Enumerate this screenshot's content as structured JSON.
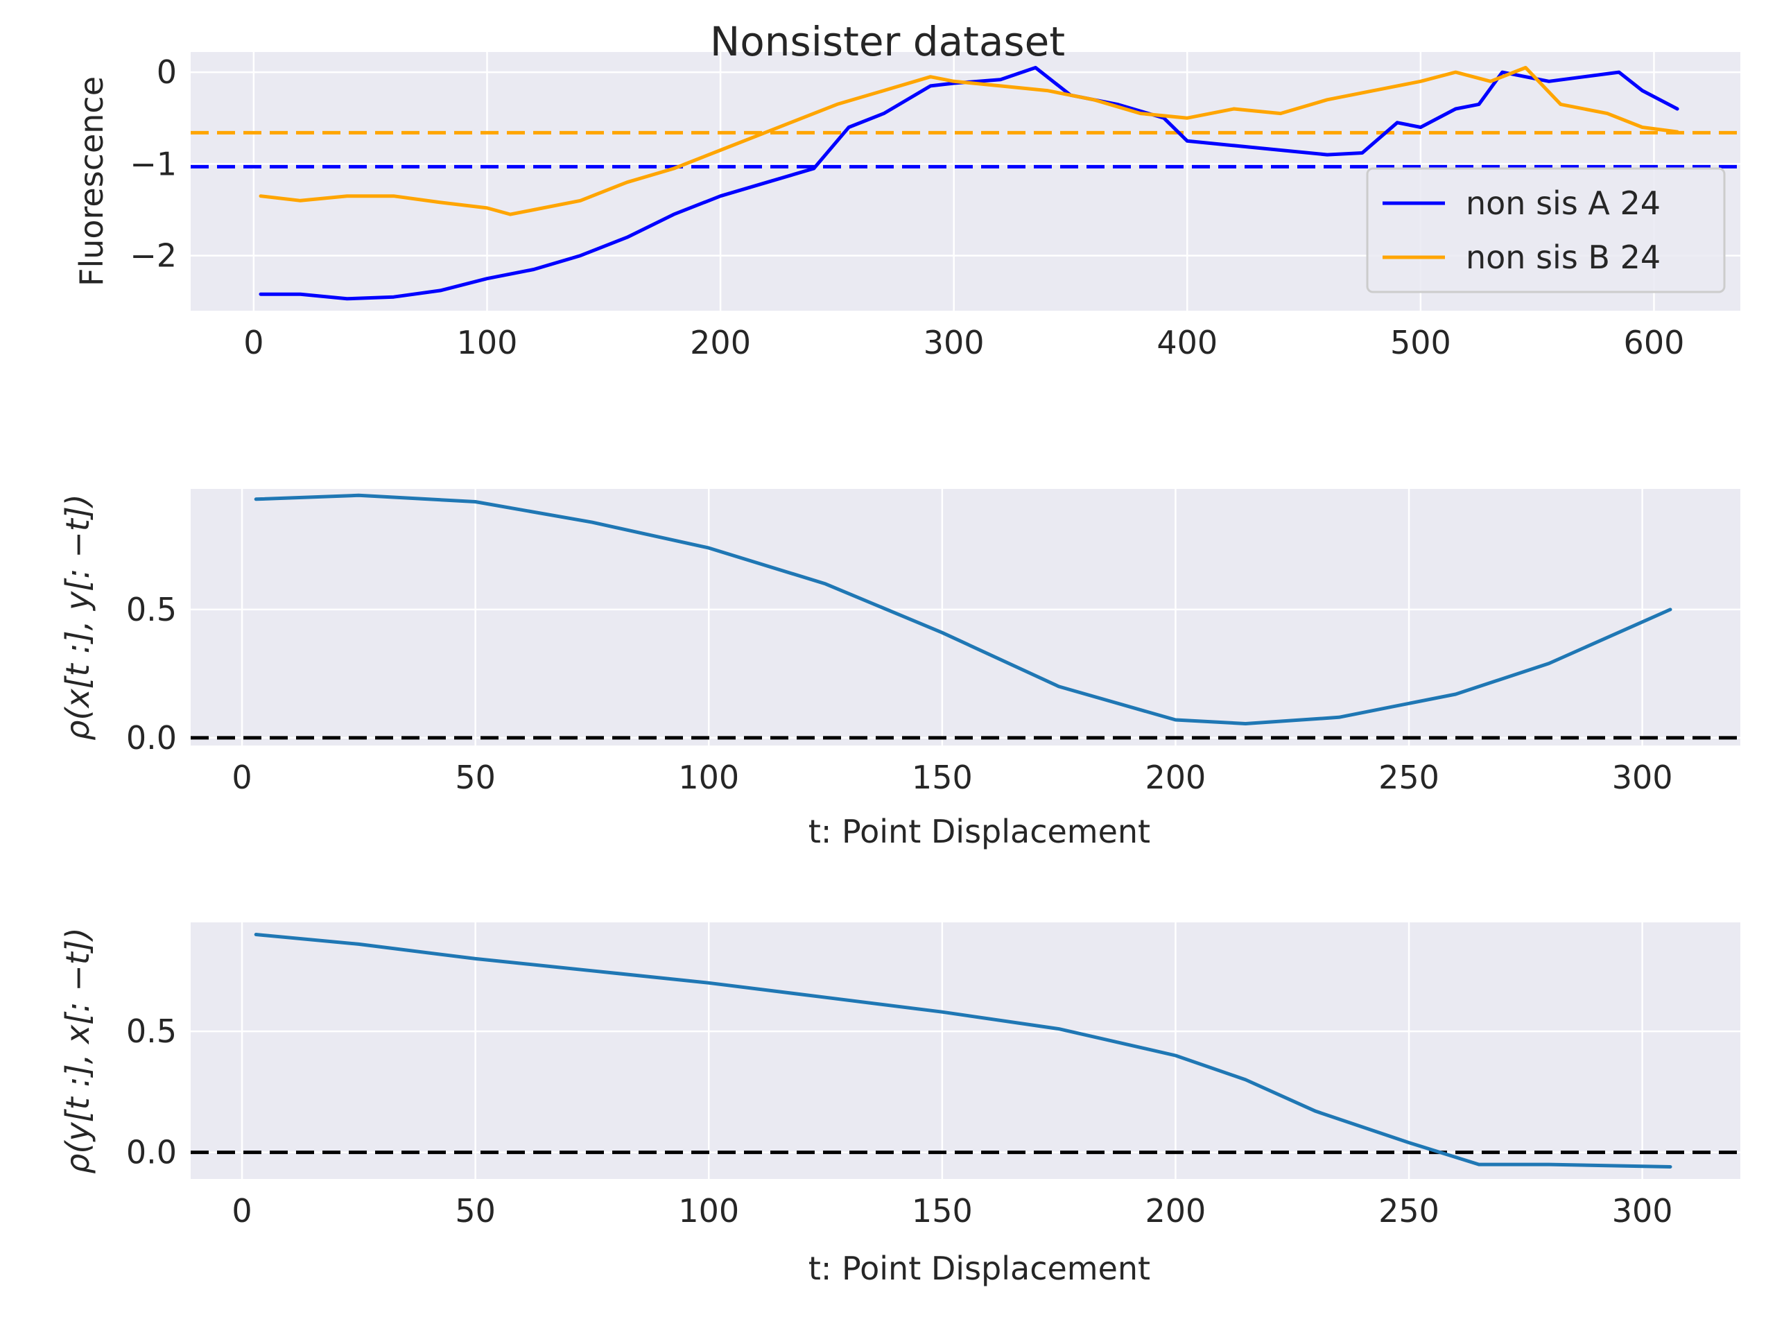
{
  "figure": {
    "title": "Nonsister dataset"
  },
  "colors": {
    "axes_bg": "#EAEAF2",
    "grid": "#FFFFFF",
    "series_a": "#0000FF",
    "series_b": "#FFA500",
    "corr_line": "#1F77B4",
    "zero_line": "#000000",
    "text": "#262626"
  },
  "chart_data": [
    {
      "type": "line",
      "title": "Nonsister dataset",
      "xlabel": "",
      "ylabel": "Fluorescence",
      "xlim": [
        -27,
        637
      ],
      "ylim": [
        -2.6,
        0.22
      ],
      "xticks": [
        0,
        100,
        200,
        300,
        400,
        500,
        600
      ],
      "yticks": [
        -2,
        -1,
        0
      ],
      "ytick_labels": [
        "−2",
        "−1",
        "0"
      ],
      "grid": true,
      "legend_position": "right",
      "series": [
        {
          "name": "non sis A 24",
          "color": "#0000FF",
          "x": [
            3,
            20,
            40,
            60,
            80,
            100,
            120,
            140,
            160,
            180,
            200,
            220,
            240,
            255,
            270,
            290,
            300,
            320,
            335,
            350,
            370,
            390,
            400,
            420,
            440,
            460,
            475,
            490,
            500,
            515,
            525,
            535,
            545,
            555,
            570,
            585,
            595,
            610
          ],
          "y": [
            -2.42,
            -2.42,
            -2.47,
            -2.45,
            -2.38,
            -2.25,
            -2.15,
            -2.0,
            -1.8,
            -1.55,
            -1.35,
            -1.2,
            -1.05,
            -0.6,
            -0.45,
            -0.15,
            -0.12,
            -0.08,
            0.05,
            -0.25,
            -0.35,
            -0.5,
            -0.75,
            -0.8,
            -0.85,
            -0.9,
            -0.88,
            -0.55,
            -0.6,
            -0.4,
            -0.35,
            0.0,
            -0.05,
            -0.1,
            -0.05,
            0.0,
            -0.2,
            -0.4
          ]
        },
        {
          "name": "non sis B 24",
          "color": "#FFA500",
          "x": [
            3,
            20,
            40,
            60,
            80,
            100,
            110,
            120,
            140,
            160,
            180,
            200,
            215,
            230,
            250,
            270,
            290,
            300,
            320,
            340,
            360,
            380,
            400,
            420,
            440,
            460,
            480,
            500,
            515,
            530,
            545,
            560,
            580,
            595,
            610
          ],
          "y": [
            -1.35,
            -1.4,
            -1.35,
            -1.35,
            -1.42,
            -1.48,
            -1.55,
            -1.5,
            -1.4,
            -1.2,
            -1.05,
            -0.85,
            -0.7,
            -0.55,
            -0.35,
            -0.2,
            -0.05,
            -0.1,
            -0.15,
            -0.2,
            -0.3,
            -0.45,
            -0.5,
            -0.4,
            -0.45,
            -0.3,
            -0.2,
            -0.1,
            0.0,
            -0.1,
            0.05,
            -0.35,
            -0.45,
            -0.6,
            -0.65
          ]
        }
      ],
      "reference_lines": [
        {
          "y": -1.03,
          "color": "#0000FF",
          "style": "dashed"
        },
        {
          "y": -0.66,
          "color": "#FFA500",
          "style": "dashed"
        }
      ]
    },
    {
      "type": "line",
      "title": "",
      "xlabel": "t: Point Displacement",
      "ylabel": "ρ(x[t :], y[: −t])",
      "xlim": [
        -11,
        321
      ],
      "ylim": [
        -0.03,
        0.97
      ],
      "xticks": [
        0,
        50,
        100,
        150,
        200,
        250,
        300
      ],
      "yticks": [
        0.0,
        0.5
      ],
      "ytick_labels": [
        "0.0",
        "0.5"
      ],
      "grid": true,
      "series": [
        {
          "color": "#1F77B4",
          "x": [
            3,
            25,
            50,
            75,
            100,
            125,
            150,
            175,
            200,
            215,
            235,
            260,
            280,
            306
          ],
          "y": [
            0.93,
            0.945,
            0.92,
            0.84,
            0.74,
            0.6,
            0.41,
            0.2,
            0.07,
            0.055,
            0.08,
            0.17,
            0.29,
            0.5
          ]
        }
      ],
      "reference_lines": [
        {
          "y": 0.0,
          "color": "#000000",
          "style": "dashed"
        }
      ]
    },
    {
      "type": "line",
      "title": "",
      "xlabel": "t: Point Displacement",
      "ylabel": "ρ(y[t :], x[: −t])",
      "xlim": [
        -11,
        321
      ],
      "ylim": [
        -0.11,
        0.95
      ],
      "xticks": [
        0,
        50,
        100,
        150,
        200,
        250,
        300
      ],
      "yticks": [
        0.0,
        0.5
      ],
      "ytick_labels": [
        "0.0",
        "0.5"
      ],
      "grid": true,
      "series": [
        {
          "color": "#1F77B4",
          "x": [
            3,
            25,
            50,
            75,
            100,
            125,
            150,
            175,
            200,
            215,
            230,
            250,
            265,
            280,
            306
          ],
          "y": [
            0.9,
            0.86,
            0.8,
            0.75,
            0.7,
            0.64,
            0.58,
            0.51,
            0.4,
            0.3,
            0.17,
            0.04,
            -0.05,
            -0.05,
            -0.06
          ]
        }
      ],
      "reference_lines": [
        {
          "y": 0.0,
          "color": "#000000",
          "style": "dashed"
        }
      ]
    }
  ]
}
